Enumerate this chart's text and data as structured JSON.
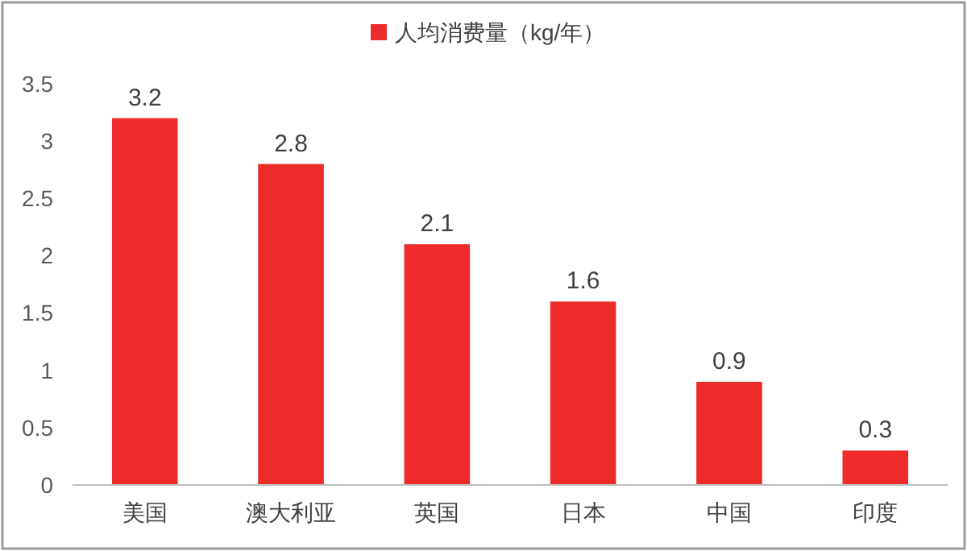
{
  "chart_data": {
    "type": "bar",
    "categories": [
      "美国",
      "澳大利亚",
      "英国",
      "日本",
      "中国",
      "印度"
    ],
    "series": [
      {
        "name": "人均消费量（kg/年）",
        "color": "#ee2b2b",
        "values": [
          3.2,
          2.8,
          2.1,
          1.6,
          0.9,
          0.3
        ]
      }
    ],
    "ylim": [
      0,
      3.5
    ],
    "yticks": [
      0,
      0.5,
      1,
      1.5,
      2,
      2.5,
      3,
      3.5
    ],
    "grid": false,
    "legend": "top",
    "data_labels": true
  }
}
